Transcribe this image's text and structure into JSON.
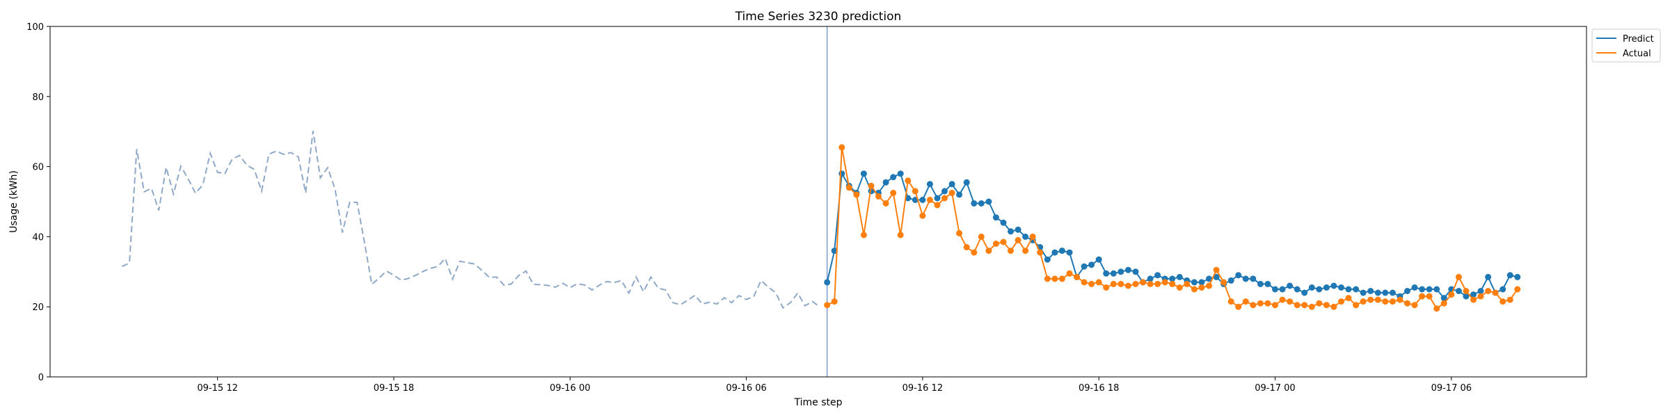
{
  "chart_data": {
    "type": "line",
    "title": "Time Series 3230 prediction",
    "xlabel": "Time step",
    "ylabel": "Usage (kWh)",
    "ylim": [
      0,
      100
    ],
    "y_ticks": [
      0,
      20,
      40,
      60,
      80,
      100
    ],
    "x_ticks": [
      {
        "t": 0,
        "label": "09-15 12"
      },
      {
        "t": 24,
        "label": "09-15 18"
      },
      {
        "t": 48,
        "label": "09-16 00"
      },
      {
        "t": 72,
        "label": "09-16 06"
      },
      {
        "t": 96,
        "label": "09-16 12"
      },
      {
        "t": 120,
        "label": "09-16 18"
      },
      {
        "t": 144,
        "label": "09-17 00"
      },
      {
        "t": 168,
        "label": "09-17 06"
      }
    ],
    "xlim": [
      -22.8,
      186.4
    ],
    "time_unit": "15 min",
    "forecast_start": 83,
    "grid": false,
    "legend_position": "outside top-right",
    "colors": {
      "predict": "#1f77b4",
      "actual": "#ff7f0e",
      "history": "#8fa8c8",
      "divider": "#6f8fc8"
    },
    "history": {
      "name": "",
      "x_start": -13,
      "values": [
        31.5,
        32.5,
        65,
        52.8,
        53.8,
        47.5,
        59.8,
        52.2,
        60.1,
        56.5,
        52.4,
        54.8,
        63.8,
        58.4,
        58,
        62.2,
        63.2,
        60.4,
        59.2,
        53,
        63.6,
        64.4,
        63.5,
        64,
        62.8,
        52.5,
        70.2,
        56.8,
        59.7,
        53.6,
        41.2,
        49.8,
        49.8,
        38.5,
        26.4,
        28.2,
        30.2,
        29,
        27.6,
        28.1,
        29,
        30.1,
        31,
        31.5,
        33.8,
        27.9,
        33,
        32.6,
        32.2,
        30.4,
        28.4,
        28.5,
        26.2,
        26.5,
        28.9,
        30.2,
        26.4,
        26.3,
        26.1,
        25.6,
        26.7,
        25.5,
        26.6,
        26.2,
        24.8,
        26.2,
        27.2,
        26.9,
        27.5,
        23.9,
        28.5,
        24.3,
        28.5,
        25.3,
        24.8,
        21.2,
        20.6,
        21.8,
        23.3,
        20.8,
        21.3,
        20.8,
        22.6,
        21.2,
        23.2,
        22.1,
        22.9,
        27.5,
        25.6,
        24,
        19.7,
        21.2,
        23.9,
        20.3,
        21.5,
        20
      ]
    },
    "series": [
      {
        "name": "Predict",
        "x_start": 83,
        "values": [
          27,
          36,
          58,
          54.5,
          52.5,
          58,
          53,
          52.5,
          55.5,
          57,
          58,
          51,
          50.5,
          50.5,
          55,
          51,
          53,
          55,
          52,
          55.5,
          49.5,
          49.5,
          50,
          45.5,
          44,
          41.5,
          42,
          40,
          39,
          37,
          33.5,
          35.5,
          36,
          35.5,
          28.5,
          31.5,
          32,
          33.5,
          29.5,
          29.5,
          30,
          30.5,
          30,
          27,
          28,
          29,
          28,
          28,
          28.5,
          27.5,
          27,
          27,
          28,
          28.5,
          26.5,
          27.5,
          29,
          28,
          28,
          26.5,
          26.5,
          25,
          25,
          26,
          25,
          24,
          25.5,
          25,
          25.5,
          26,
          25.5,
          25,
          25,
          24,
          24.5,
          24,
          24,
          24,
          23,
          24.5,
          25.5,
          25,
          25,
          25,
          22.5,
          25,
          24.5,
          23,
          23.5,
          24.5,
          28.5,
          24,
          25,
          29,
          28.5
        ]
      },
      {
        "name": "Actual",
        "x_start": 83,
        "values": [
          20.5,
          21.5,
          65.5,
          54,
          52,
          40.5,
          54.5,
          51.5,
          49.5,
          52.5,
          40.5,
          56,
          53,
          46,
          50.5,
          49,
          51,
          52.5,
          41,
          37,
          35.5,
          40,
          36,
          38,
          38.5,
          36,
          39,
          36,
          40,
          35.5,
          28,
          28,
          28,
          29.5,
          28.5,
          27,
          26.5,
          27,
          25.5,
          26.5,
          26.5,
          26,
          26.5,
          27,
          26.5,
          26.5,
          27,
          26.5,
          25.5,
          26.5,
          25,
          25.5,
          26,
          30.5,
          27,
          21.5,
          20,
          21.5,
          20.5,
          21,
          21,
          20.5,
          22,
          21.5,
          20.5,
          20.5,
          20,
          21,
          20.5,
          20,
          21.5,
          22.5,
          20.5,
          21.5,
          22,
          22,
          21.5,
          21.5,
          22,
          21,
          20.5,
          23,
          23,
          19.5,
          21,
          23.5,
          28.5,
          24.5,
          22,
          23,
          24.5,
          24,
          21.5,
          22,
          25
        ]
      }
    ]
  }
}
